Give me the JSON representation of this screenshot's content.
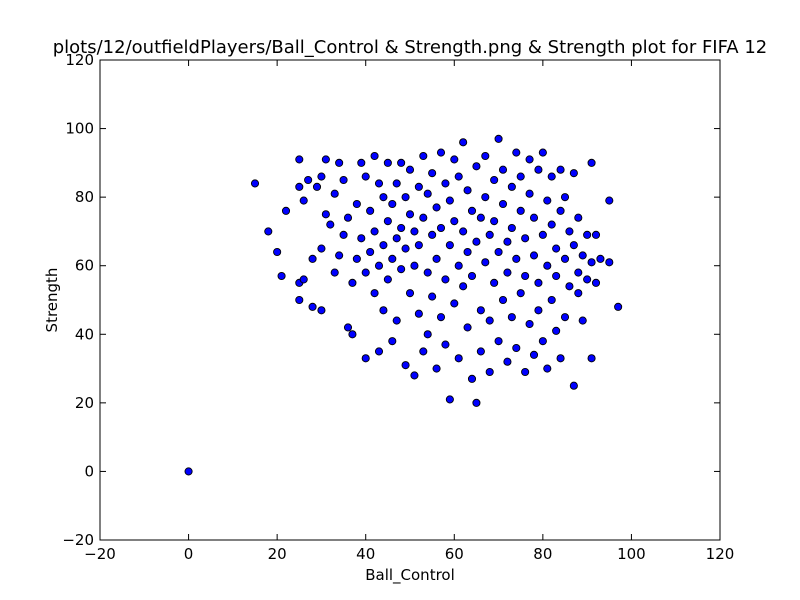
{
  "chart_data": {
    "type": "scatter",
    "title": "plots/12/outfieldPlayers/Ball_Control & Strength.png & Strength plot for FIFA 12",
    "xlabel": "Ball_Control",
    "ylabel": "Strength",
    "xlim": [
      -20,
      120
    ],
    "ylim": [
      -20,
      120
    ],
    "xticks": [
      -20,
      0,
      20,
      40,
      60,
      80,
      100,
      120
    ],
    "yticks": [
      -20,
      0,
      20,
      40,
      60,
      80,
      100,
      120
    ],
    "grid": false,
    "legend": "none",
    "marker_color": "#0000ff",
    "marker_edge_color": "#000000",
    "series": [
      {
        "points": [
          [
            0,
            0
          ],
          [
            15,
            84
          ],
          [
            18,
            70
          ],
          [
            20,
            64
          ],
          [
            21,
            57
          ],
          [
            22,
            76
          ],
          [
            25,
            91
          ],
          [
            25,
            83
          ],
          [
            25,
            55
          ],
          [
            25,
            50
          ],
          [
            26,
            56
          ],
          [
            26,
            79
          ],
          [
            27,
            85
          ],
          [
            28,
            62
          ],
          [
            28,
            48
          ],
          [
            29,
            83
          ],
          [
            30,
            86
          ],
          [
            30,
            47
          ],
          [
            30,
            65
          ],
          [
            31,
            91
          ],
          [
            31,
            75
          ],
          [
            32,
            72
          ],
          [
            33,
            58
          ],
          [
            33,
            81
          ],
          [
            34,
            90
          ],
          [
            34,
            63
          ],
          [
            35,
            69
          ],
          [
            35,
            85
          ],
          [
            36,
            74
          ],
          [
            36,
            42
          ],
          [
            37,
            55
          ],
          [
            37,
            40
          ],
          [
            38,
            62
          ],
          [
            38,
            78
          ],
          [
            39,
            68
          ],
          [
            39,
            90
          ],
          [
            40,
            58
          ],
          [
            40,
            86
          ],
          [
            40,
            33
          ],
          [
            41,
            76
          ],
          [
            41,
            64
          ],
          [
            42,
            70
          ],
          [
            42,
            52
          ],
          [
            42,
            92
          ],
          [
            43,
            35
          ],
          [
            43,
            60
          ],
          [
            43,
            84
          ],
          [
            44,
            66
          ],
          [
            44,
            80
          ],
          [
            44,
            47
          ],
          [
            45,
            73
          ],
          [
            45,
            56
          ],
          [
            45,
            90
          ],
          [
            46,
            62
          ],
          [
            46,
            38
          ],
          [
            46,
            78
          ],
          [
            47,
            84
          ],
          [
            47,
            68
          ],
          [
            47,
            44
          ],
          [
            48,
            71
          ],
          [
            48,
            59
          ],
          [
            48,
            90
          ],
          [
            49,
            31
          ],
          [
            49,
            65
          ],
          [
            49,
            80
          ],
          [
            50,
            52
          ],
          [
            50,
            75
          ],
          [
            50,
            88
          ],
          [
            51,
            28
          ],
          [
            51,
            60
          ],
          [
            51,
            70
          ],
          [
            52,
            83
          ],
          [
            52,
            46
          ],
          [
            52,
            66
          ],
          [
            53,
            92
          ],
          [
            53,
            35
          ],
          [
            53,
            74
          ],
          [
            54,
            58
          ],
          [
            54,
            81
          ],
          [
            54,
            40
          ],
          [
            55,
            69
          ],
          [
            55,
            51
          ],
          [
            55,
            87
          ],
          [
            56,
            62
          ],
          [
            56,
            30
          ],
          [
            56,
            77
          ],
          [
            57,
            93
          ],
          [
            57,
            45
          ],
          [
            57,
            71
          ],
          [
            58,
            56
          ],
          [
            58,
            84
          ],
          [
            58,
            37
          ],
          [
            59,
            66
          ],
          [
            59,
            21
          ],
          [
            59,
            79
          ],
          [
            60,
            49
          ],
          [
            60,
            91
          ],
          [
            60,
            73
          ],
          [
            61,
            60
          ],
          [
            61,
            33
          ],
          [
            61,
            86
          ],
          [
            62,
            96
          ],
          [
            62,
            54
          ],
          [
            62,
            70
          ],
          [
            63,
            42
          ],
          [
            63,
            82
          ],
          [
            63,
            64
          ],
          [
            64,
            27
          ],
          [
            64,
            76
          ],
          [
            64,
            57
          ],
          [
            65,
            20
          ],
          [
            65,
            89
          ],
          [
            65,
            67
          ],
          [
            66,
            47
          ],
          [
            66,
            74
          ],
          [
            66,
            35
          ],
          [
            67,
            92
          ],
          [
            67,
            61
          ],
          [
            67,
            80
          ],
          [
            68,
            44
          ],
          [
            68,
            69
          ],
          [
            68,
            29
          ],
          [
            69,
            85
          ],
          [
            69,
            55
          ],
          [
            69,
            73
          ],
          [
            70,
            97
          ],
          [
            70,
            38
          ],
          [
            70,
            64
          ],
          [
            71,
            78
          ],
          [
            71,
            50
          ],
          [
            71,
            88
          ],
          [
            72,
            32
          ],
          [
            72,
            67
          ],
          [
            72,
            58
          ],
          [
            73,
            83
          ],
          [
            73,
            45
          ],
          [
            73,
            71
          ],
          [
            74,
            93
          ],
          [
            74,
            36
          ],
          [
            74,
            62
          ],
          [
            75,
            76
          ],
          [
            75,
            52
          ],
          [
            75,
            86
          ],
          [
            76,
            29
          ],
          [
            76,
            68
          ],
          [
            76,
            57
          ],
          [
            77,
            81
          ],
          [
            77,
            43
          ],
          [
            77,
            91
          ],
          [
            78,
            63
          ],
          [
            78,
            34
          ],
          [
            78,
            74
          ],
          [
            79,
            55
          ],
          [
            79,
            88
          ],
          [
            79,
            47
          ],
          [
            80,
            69
          ],
          [
            80,
            93
          ],
          [
            80,
            38
          ],
          [
            81,
            60
          ],
          [
            81,
            79
          ],
          [
            81,
            30
          ],
          [
            82,
            72
          ],
          [
            82,
            50
          ],
          [
            82,
            86
          ],
          [
            83,
            41
          ],
          [
            83,
            65
          ],
          [
            83,
            57
          ],
          [
            84,
            76
          ],
          [
            84,
            33
          ],
          [
            84,
            88
          ],
          [
            85,
            62
          ],
          [
            85,
            45
          ],
          [
            85,
            80
          ],
          [
            86,
            54
          ],
          [
            86,
            70
          ],
          [
            87,
            25
          ],
          [
            87,
            66
          ],
          [
            87,
            87
          ],
          [
            88,
            58
          ],
          [
            88,
            74
          ],
          [
            88,
            52
          ],
          [
            89,
            63
          ],
          [
            89,
            44
          ],
          [
            90,
            69
          ],
          [
            90,
            56
          ],
          [
            91,
            33
          ],
          [
            91,
            90
          ],
          [
            91,
            61
          ],
          [
            92,
            69
          ],
          [
            92,
            55
          ],
          [
            93,
            62
          ],
          [
            95,
            79
          ],
          [
            95,
            61
          ],
          [
            97,
            48
          ]
        ]
      }
    ]
  }
}
